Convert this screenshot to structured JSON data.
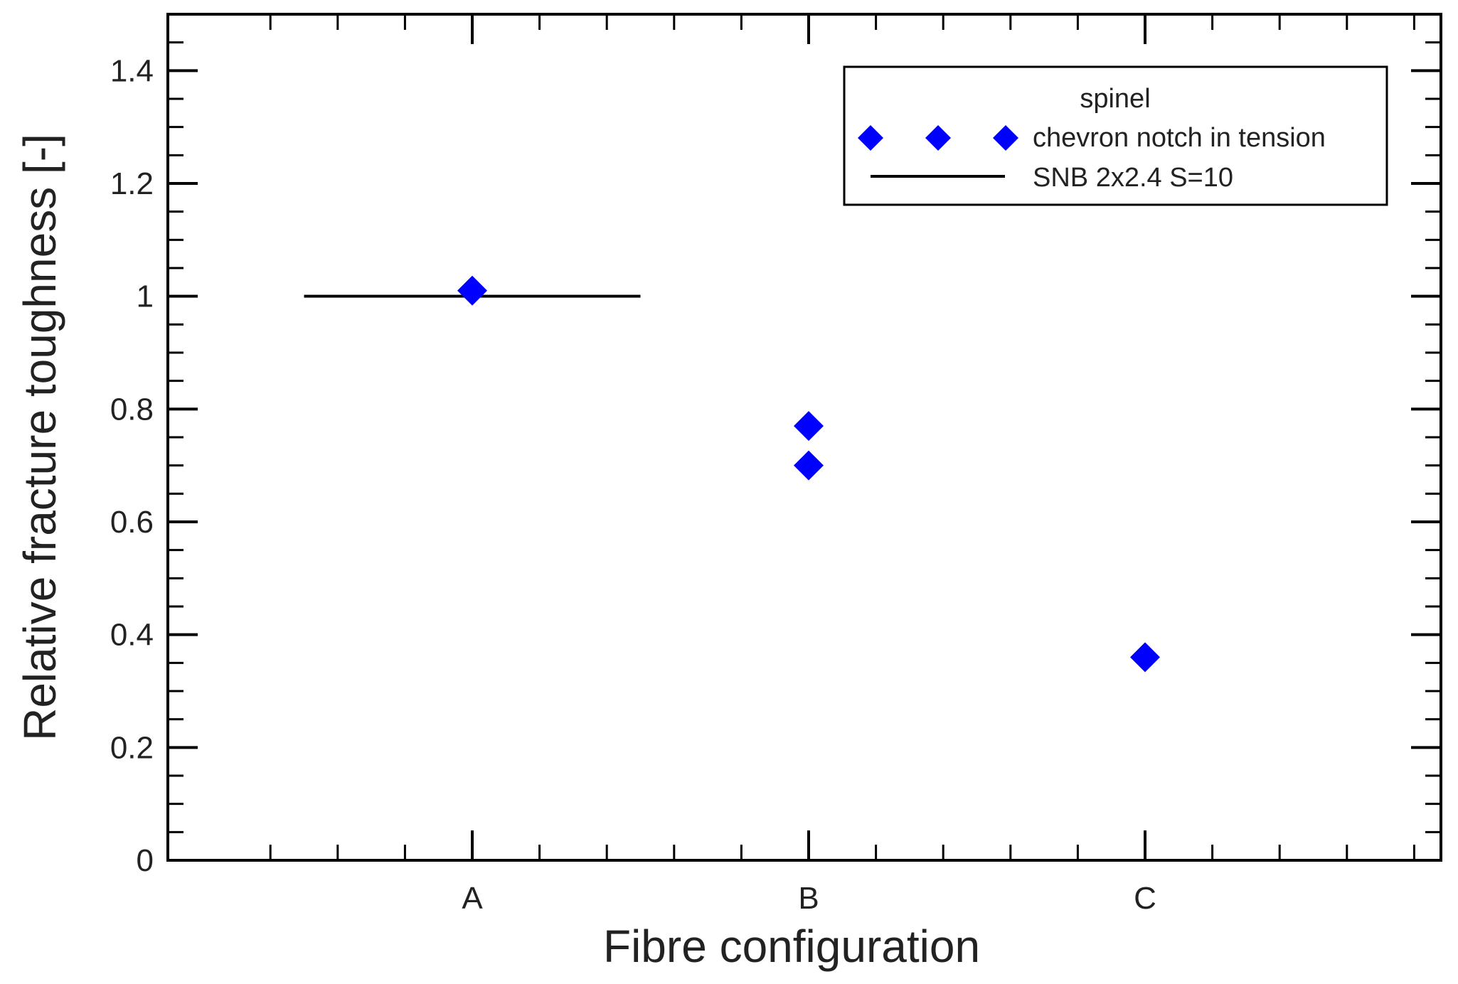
{
  "chart_data": {
    "type": "scatter",
    "xlabel": "Fibre configuration",
    "ylabel": "Relative fracture toughness [-]",
    "categories": [
      "A",
      "B",
      "C"
    ],
    "ylim": [
      0,
      1.5
    ],
    "yticks": [
      "0",
      "0.2",
      "0.4",
      "0.6",
      "0.8",
      "1",
      "1.2",
      "1.4"
    ],
    "ytick_values": [
      0,
      0.2,
      0.4,
      0.6,
      0.8,
      1.0,
      1.2,
      1.4
    ],
    "grid": false,
    "legend_position": "top-right",
    "legend": {
      "title": "spinel",
      "entries": [
        "chevron notch in tension",
        "SNB 2x2.4 S=10"
      ]
    },
    "series": [
      {
        "name": "chevron notch in tension",
        "marker": "diamond",
        "color": "#0000ff",
        "points": [
          {
            "x": "A",
            "y": 1.01
          },
          {
            "x": "B",
            "y": 0.77
          },
          {
            "x": "B",
            "y": 0.7
          },
          {
            "x": "C",
            "y": 0.36
          }
        ]
      },
      {
        "name": "SNB 2x2.4 S=10",
        "type": "line",
        "color": "#000000",
        "x_range": [
          0.5,
          1.5
        ],
        "y": 1.0
      }
    ]
  }
}
